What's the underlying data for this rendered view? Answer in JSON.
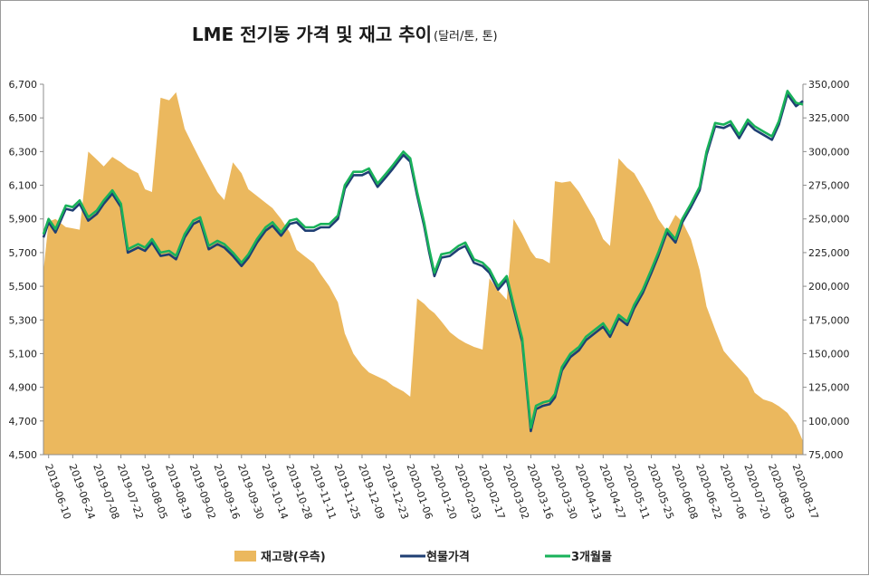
{
  "chart_data": {
    "type": "line",
    "title": "LME 전기동 가격 및 재고 추이",
    "subtitle": "(달러/톤, 톤)",
    "colors": {
      "inventory": "#ebb85e",
      "spot": "#1f3f73",
      "three_month": "#19b25a"
    },
    "y_left": {
      "min": 4500,
      "max": 6700,
      "ticks": [
        "4,500",
        "4,700",
        "4,900",
        "5,100",
        "5,300",
        "5,500",
        "5,700",
        "5,900",
        "6,100",
        "6,300",
        "6,500",
        "6,700"
      ]
    },
    "y_right": {
      "min": 75000,
      "max": 350000,
      "ticks": [
        "75,000",
        "100,000",
        "125,000",
        "150,000",
        "175,000",
        "200,000",
        "225,000",
        "250,000",
        "275,000",
        "300,000",
        "325,000",
        "350,000"
      ]
    },
    "x_ticks": [
      "2019-06-10",
      "2019-06-24",
      "2019-07-08",
      "2019-07-22",
      "2019-08-05",
      "2019-08-19",
      "2019-09-02",
      "2019-09-16",
      "2019-09-30",
      "2019-10-14",
      "2019-10-28",
      "2019-11-11",
      "2019-11-25",
      "2019-12-09",
      "2019-12-23",
      "2020-01-06",
      "2020-01-20",
      "2020-02-03",
      "2020-02-17",
      "2020-03-02",
      "2020-03-16",
      "2020-03-30",
      "2020-04-13",
      "2020-04-27",
      "2020-05-11",
      "2020-05-25",
      "2020-06-08",
      "2020-06-22",
      "2020-07-06",
      "2020-07-20",
      "2020-08-03",
      "2020-08-17"
    ],
    "legend": [
      "재고량(우측)",
      "현물가격",
      "3개월물"
    ],
    "x": [
      "2019-06-07",
      "2019-06-10",
      "2019-06-14",
      "2019-06-20",
      "2019-06-24",
      "2019-06-28",
      "2019-07-03",
      "2019-07-08",
      "2019-07-12",
      "2019-07-17",
      "2019-07-22",
      "2019-07-26",
      "2019-08-01",
      "2019-08-05",
      "2019-08-09",
      "2019-08-14",
      "2019-08-19",
      "2019-08-23",
      "2019-08-28",
      "2019-09-02",
      "2019-09-06",
      "2019-09-11",
      "2019-09-16",
      "2019-09-20",
      "2019-09-25",
      "2019-09-30",
      "2019-10-04",
      "2019-10-09",
      "2019-10-14",
      "2019-10-18",
      "2019-10-23",
      "2019-10-28",
      "2019-11-01",
      "2019-11-06",
      "2019-11-11",
      "2019-11-15",
      "2019-11-20",
      "2019-11-25",
      "2019-11-29",
      "2019-12-04",
      "2019-12-09",
      "2019-12-13",
      "2019-12-18",
      "2019-12-23",
      "2019-12-27",
      "2020-01-02",
      "2020-01-06",
      "2020-01-10",
      "2020-01-14",
      "2020-01-17",
      "2020-01-20",
      "2020-01-24",
      "2020-01-29",
      "2020-02-03",
      "2020-02-07",
      "2020-02-12",
      "2020-02-17",
      "2020-02-21",
      "2020-02-26",
      "2020-03-02",
      "2020-03-06",
      "2020-03-11",
      "2020-03-16",
      "2020-03-19",
      "2020-03-23",
      "2020-03-27",
      "2020-03-30",
      "2020-04-03",
      "2020-04-08",
      "2020-04-13",
      "2020-04-17",
      "2020-04-22",
      "2020-04-27",
      "2020-05-01",
      "2020-05-06",
      "2020-05-11",
      "2020-05-15",
      "2020-05-20",
      "2020-05-25",
      "2020-05-29",
      "2020-06-03",
      "2020-06-08",
      "2020-06-12",
      "2020-06-17",
      "2020-06-22",
      "2020-06-26",
      "2020-07-01",
      "2020-07-06",
      "2020-07-10",
      "2020-07-15",
      "2020-07-20",
      "2020-07-24",
      "2020-07-29",
      "2020-08-03",
      "2020-08-07",
      "2020-08-12",
      "2020-08-17",
      "2020-08-21"
    ],
    "series": [
      {
        "name": "재고량(우측)",
        "axis": "right",
        "type": "area",
        "values": [
          211000,
          248000,
          250000,
          244000,
          243000,
          242000,
          300000,
          294000,
          289000,
          296000,
          292000,
          288000,
          284000,
          272000,
          270000,
          340000,
          338000,
          344000,
          317000,
          304000,
          294000,
          282000,
          270000,
          264000,
          292000,
          284000,
          272000,
          267000,
          262000,
          258000,
          250000,
          240000,
          227000,
          222000,
          217000,
          209000,
          200000,
          188000,
          165000,
          150000,
          141000,
          136000,
          133000,
          130000,
          126000,
          122000,
          118000,
          191000,
          187000,
          183000,
          180000,
          174000,
          166000,
          161000,
          158000,
          155000,
          153000,
          206000,
          197000,
          190000,
          250000,
          239000,
          226000,
          221000,
          220000,
          217000,
          278000,
          277000,
          278000,
          270000,
          261000,
          250000,
          235000,
          230000,
          295000,
          288000,
          284000,
          273000,
          261000,
          250000,
          241000,
          253000,
          248000,
          235000,
          212000,
          185000,
          168000,
          152000,
          146000,
          139000,
          132000,
          121000,
          116000,
          114000,
          111000,
          106000,
          97000,
          85000
        ]
      },
      {
        "name": "현물가격",
        "axis": "left",
        "type": "line",
        "values": [
          5790,
          5880,
          5820,
          5960,
          5950,
          5990,
          5890,
          5930,
          5990,
          6050,
          5970,
          5700,
          5730,
          5710,
          5760,
          5680,
          5690,
          5660,
          5790,
          5870,
          5890,
          5720,
          5750,
          5730,
          5680,
          5620,
          5670,
          5760,
          5830,
          5860,
          5800,
          5870,
          5880,
          5830,
          5830,
          5850,
          5850,
          5900,
          6080,
          6160,
          6160,
          6180,
          6090,
          6150,
          6200,
          6280,
          6240,
          6040,
          5860,
          5700,
          5560,
          5670,
          5680,
          5720,
          5740,
          5640,
          5620,
          5580,
          5480,
          5540,
          5370,
          5170,
          4640,
          4770,
          4790,
          4800,
          4840,
          5000,
          5080,
          5120,
          5180,
          5220,
          5260,
          5200,
          5310,
          5270,
          5370,
          5460,
          5580,
          5680,
          5820,
          5760,
          5880,
          5970,
          6070,
          6280,
          6450,
          6440,
          6460,
          6380,
          6470,
          6430,
          6400,
          6370,
          6460,
          6640,
          6570,
          6600
        ]
      },
      {
        "name": "3개월물",
        "axis": "left",
        "type": "line",
        "values": [
          5810,
          5900,
          5840,
          5980,
          5970,
          6010,
          5910,
          5950,
          6010,
          6070,
          5990,
          5720,
          5750,
          5730,
          5780,
          5700,
          5710,
          5680,
          5810,
          5890,
          5910,
          5740,
          5770,
          5750,
          5700,
          5640,
          5690,
          5780,
          5850,
          5880,
          5820,
          5890,
          5900,
          5850,
          5850,
          5870,
          5870,
          5920,
          6100,
          6180,
          6180,
          6200,
          6110,
          6170,
          6220,
          6300,
          6260,
          6060,
          5880,
          5720,
          5580,
          5690,
          5700,
          5740,
          5760,
          5660,
          5640,
          5600,
          5500,
          5560,
          5390,
          5190,
          4660,
          4790,
          4810,
          4820,
          4860,
          5020,
          5100,
          5140,
          5200,
          5240,
          5280,
          5220,
          5330,
          5290,
          5390,
          5480,
          5600,
          5700,
          5840,
          5780,
          5900,
          5990,
          6090,
          6300,
          6470,
          6460,
          6480,
          6400,
          6490,
          6450,
          6420,
          6390,
          6480,
          6660,
          6590,
          6580
        ]
      }
    ]
  }
}
